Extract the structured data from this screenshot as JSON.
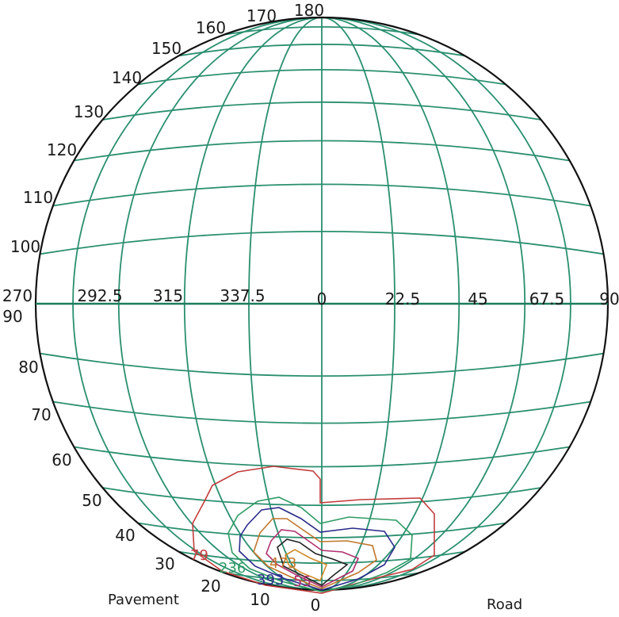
{
  "colors": {
    "grid": "#2a8f6f",
    "outline": "#111111",
    "background": "#ffffff"
  },
  "labels": {
    "top": "180",
    "center": "0",
    "h_left": "270",
    "h_right": "90",
    "left_90": "90",
    "bottom_0": "0",
    "pavement": "Pavement",
    "road": "Road"
  },
  "horizontal_angles": [
    "292.5",
    "315",
    "337.5",
    "22.5",
    "45",
    "67.5"
  ],
  "left_angles_upper": [
    "170",
    "160",
    "150",
    "140",
    "130",
    "120",
    "110",
    "100"
  ],
  "left_angles_lower": [
    "80",
    "70",
    "60",
    "50",
    "40",
    "30",
    "20",
    "10"
  ],
  "contours": [
    {
      "label": "79",
      "color": "#c23b3b"
    },
    {
      "label": "236",
      "color": "#2e9b63"
    },
    {
      "label": "393",
      "color": "#2a2a8a"
    },
    {
      "label": "473",
      "color": "#c1762c"
    },
    {
      "label": "55",
      "color": "#b0306e"
    }
  ],
  "contour_labels_visible": [
    "79",
    "236",
    "393",
    "473",
    "55"
  ]
}
